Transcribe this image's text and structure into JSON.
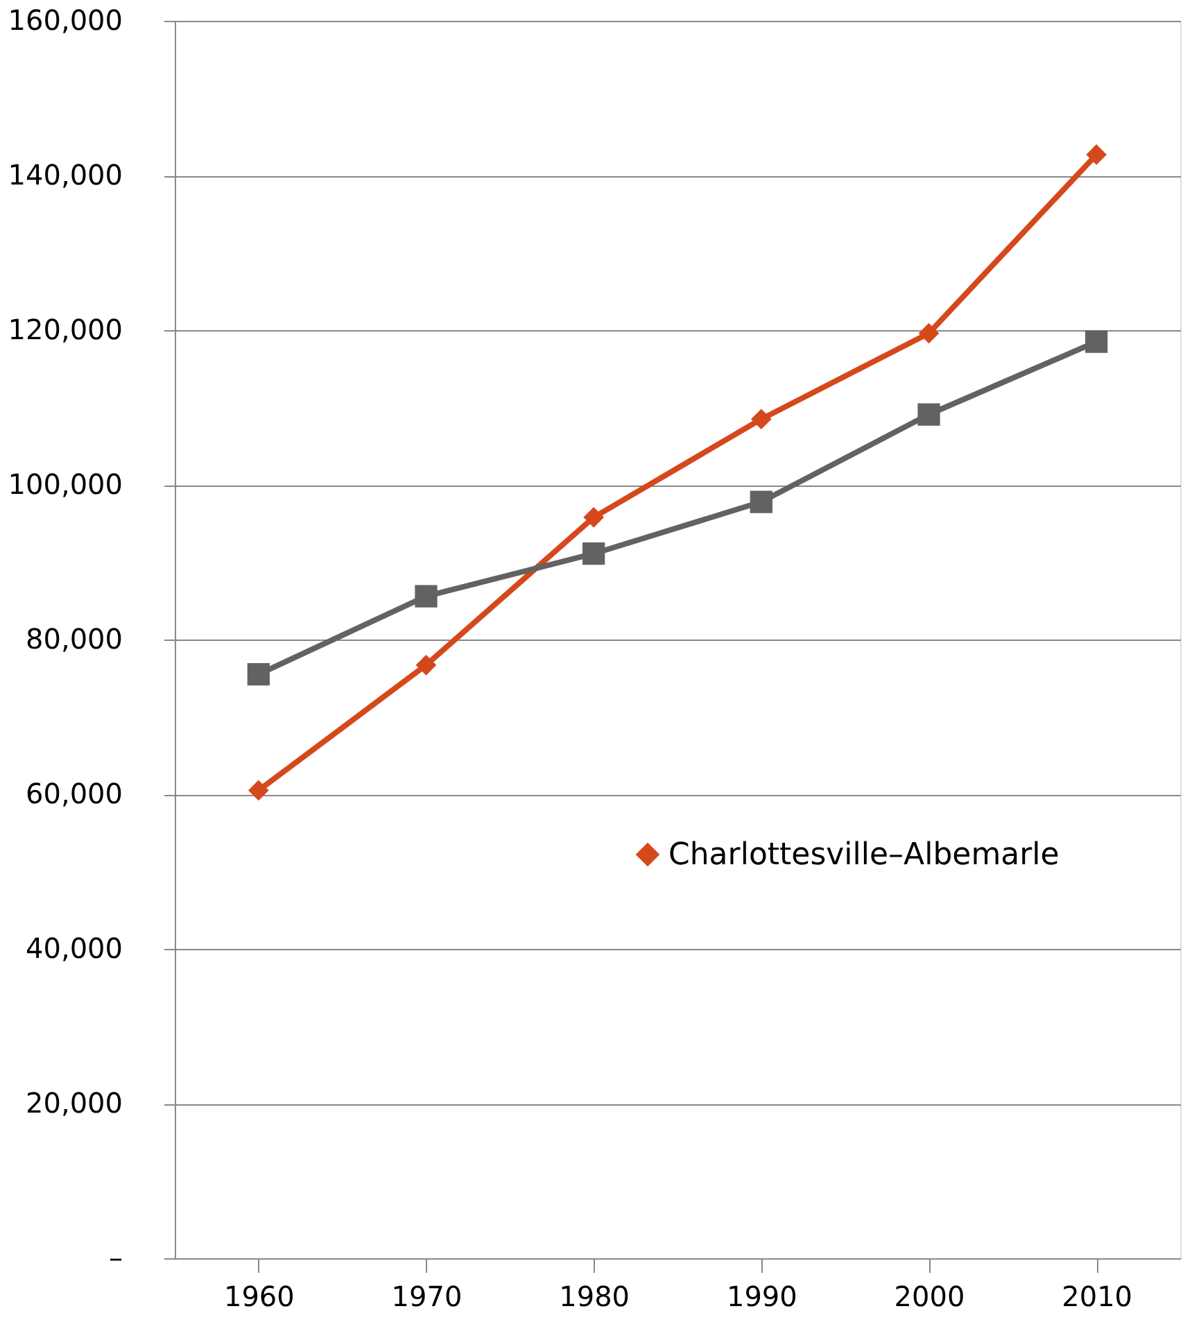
{
  "chart_data": {
    "type": "line",
    "categories": [
      "1960",
      "1970",
      "1980",
      "1990",
      "2000",
      "2010"
    ],
    "series": [
      {
        "name": "Charlottesville–Albemarle",
        "color": "#d5481c",
        "marker": "diamond",
        "values": [
          60500,
          76700,
          95800,
          108500,
          119600,
          142700
        ]
      },
      {
        "color": "#626262",
        "marker": "square",
        "values": [
          75500,
          85600,
          91100,
          97800,
          109100,
          118500
        ]
      }
    ],
    "ylim": [
      0,
      160000
    ],
    "yticks": [
      {
        "value": 0,
        "label": "–"
      },
      {
        "value": 20000,
        "label": "20,000"
      },
      {
        "value": 40000,
        "label": "40,000"
      },
      {
        "value": 60000,
        "label": "60,000"
      },
      {
        "value": 80000,
        "label": "80,000"
      },
      {
        "value": 100000,
        "label": "100,000"
      },
      {
        "value": 120000,
        "label": "120,000"
      },
      {
        "value": 140000,
        "label": "140,000"
      },
      {
        "value": 160000,
        "label": "160,000"
      }
    ],
    "grid": "y",
    "legend": "right"
  }
}
